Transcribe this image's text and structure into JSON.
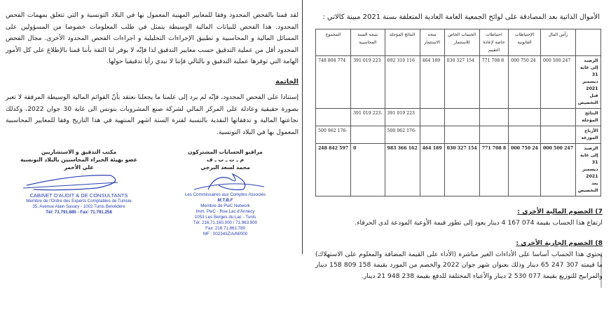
{
  "left": {
    "paragraph1": "لقد قمنا بالفحص المحدود وفقا للمعايير المهنية المعمول بها في البلاد التونسية و التي تتعلق بمهمات الفحص المحدود. هذا الفحص للبيانات المالية الوسيطة يتمثل في طلب المعلومات خصوصا من المسؤولين على المسائل المالية و المحاسبية و تطبيق الإجراءات التحليلية و اجراءات الفحص المحدود الأخرى. مجال الفحص المحدود أقل من عملية التدقيق حسب معايير التدقيق لذا فإنّه لا يوفر لنا الثقة بأننا قمنا بالإطلاع على كل الأمور الهامة التي توفرها عملية التدقيق و بالتالي فإننا لا نبدي رأيا تدقيقيا حولها.",
    "conclusion_heading": "الخاتمة",
    "paragraph2": "إستنادا على الفحص المحدود، فإنّه لم يرد إلى علمنا ما يجعلنا نعتقد بأنّ القوائم المالية الوسيطة المرفقة لا تعبر بصورة حقيقية وعادلة على المركز المالي لشركة صنع المشروبات بتونس الى غاية 30 جوان 2022، وكذلك نجاعتها المالية و تدفقاتها النقدية بالنسبة لفترة الستة اشهر المنتهية في هذا التاريخ وفقا للمعايير المحاسبية المعمول بها في البلاد التونسية.",
    "signature_right": {
      "line1": "مراقبو الحسابات المشتركون",
      "line2": "م ـ ت ـ ب ـ ف",
      "line3": "محمد لسعد البرجي",
      "stamp": [
        "Les Commissaires aux Comptes Associés",
        "M.T.B.F",
        "Membre de PwC Network",
        "Imm. PwC - Rue Lac d'Annecy",
        "1053 Les Berges du Lac - Tunis",
        "Tél: 216.71.160.000 / 71.963.900",
        "Fax: 216.71.861.789",
        "MF : 002343Z/A/M/000"
      ]
    },
    "signature_left": {
      "line1": "مكتب التدقيق و الاستشاريين",
      "line2": "عضو بهيئة الخبراء المحاسبين بالبلاد التونسية",
      "line3": "علي الأحمر",
      "stamp": [
        "CABINET D'AUDIT & DE CONSULTANTS",
        "Membre de l'Ordre des Experts Comptables de Tunisie",
        "35, Avenue Alain Savary - 1002 Tunis Belvédère",
        "Tél: 71.791.885 - Fax: 71.791.258"
      ]
    }
  },
  "right": {
    "title": "الأموال الذاتية بعد المصادقة على لوائح الجمعية العامة العادية المتعلقة بسنة 2021 مبينة كالاتي :",
    "table": {
      "headers": [
        "",
        "رأس المال",
        "الإحتياطات القانونية",
        "احتياطات خاصة لإعادة التقييم",
        "الحساب الخاص للاستثمار",
        "منحة الاستثمار",
        "النتائج المؤجلة",
        "نتيجة السنة المحاسبية",
        "المجموع"
      ],
      "rows": [
        [
          "الرصيد إلى غاية 31 ديسمبر 2021 قبل التخصيص",
          "247 500 000",
          "24 750 000",
          "8 708 771",
          "154 327 030",
          "189 464",
          "116 310 092",
          "223 019 391",
          "774 804 748"
        ],
        [
          "النتائج المؤجلة",
          "",
          "",
          "",
          "",
          "",
          "223 019 391",
          "-223 019 391",
          ""
        ],
        [
          "الأرباح الموزعة",
          "",
          "",
          "",
          "",
          "",
          "-176 962 500",
          "",
          "-176 962 500"
        ],
        [
          "الرصيد إلى غاية 31 ديسمبر 2021 بعد التخصيص",
          "247 500 000",
          "24 750 000",
          "8 708 771",
          "154 327 030",
          "189 464",
          "162 366 983",
          "0",
          "597 842 248"
        ]
      ]
    },
    "section7": {
      "heading": "7) الخصوم المالية الأخرى :",
      "text": "ارتفاع هذا الحساب بقيمة 074 167 4 دينار يعود إلى تطور قيمة الأوعية المودعة لدى الحرفاء."
    },
    "section8": {
      "heading": "8) الخصوم الجارية الأخرى :",
      "text": "يحتوي هذا الحساب أساسا على الأداءات الغير مباشرة (الأداء على القيمة المضافة والمعلوم على الاستهلاك) ما قيمته 307 247 65 دينار وذلك بعنوان شهر جوان 2022 والخصم من المورد بقيمة 158 809 158 دينار والمرابيح للتوزيع بقيمة 077 530 2 دينار والأعباء المختلفة للدفع بقيمة 238 948 21 دينار."
    }
  }
}
